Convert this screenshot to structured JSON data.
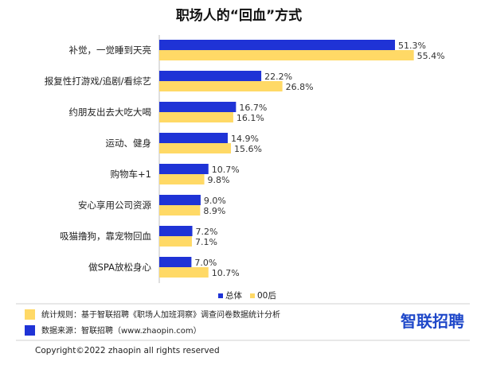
{
  "chart_data": {
    "type": "bar",
    "orientation": "horizontal",
    "title": "职场人的“回血”方式",
    "categories": [
      "补觉，一觉睡到天亮",
      "报复性打游戏/追剧/看综艺",
      "约朋友出去大吃大喝",
      "运动、健身",
      "购物车+1",
      "安心享用公司资源",
      "吸猫撸狗，靠宠物回血",
      "做SPA放松身心"
    ],
    "series": [
      {
        "name": "总体",
        "color": "#1f33d6",
        "values": [
          51.3,
          22.2,
          16.7,
          14.9,
          10.7,
          9.0,
          7.2,
          7.0
        ],
        "labels": [
          "51.3%",
          "22.2%",
          "16.7%",
          "14.9%",
          "10.7%",
          "9.0%",
          "7.2%",
          "7.0%"
        ]
      },
      {
        "name": "00后",
        "color": "#ffd966",
        "values": [
          55.4,
          26.8,
          16.1,
          15.6,
          9.8,
          8.9,
          7.1,
          10.7
        ],
        "labels": [
          "55.4%",
          "26.8%",
          "16.1%",
          "15.6%",
          "9.8%",
          "8.9%",
          "7.1%",
          "10.7%"
        ]
      }
    ],
    "xlim": [
      0,
      100
    ],
    "grid": false,
    "legend_position": "bottom-right"
  },
  "notes": [
    {
      "icon_color": "#ffd966",
      "text": "统计规则：基于智联招聘《职场人加班洞察》调查问卷数据统计分析"
    },
    {
      "icon_color": "#1f33d6",
      "text": "数据来源：智联招聘（www.zhaopin.com）"
    }
  ],
  "logo": {
    "text": "智联招聘",
    "color": "#1f48c9"
  },
  "copyright": "Copyright©2022 zhaopin all rights reserved"
}
